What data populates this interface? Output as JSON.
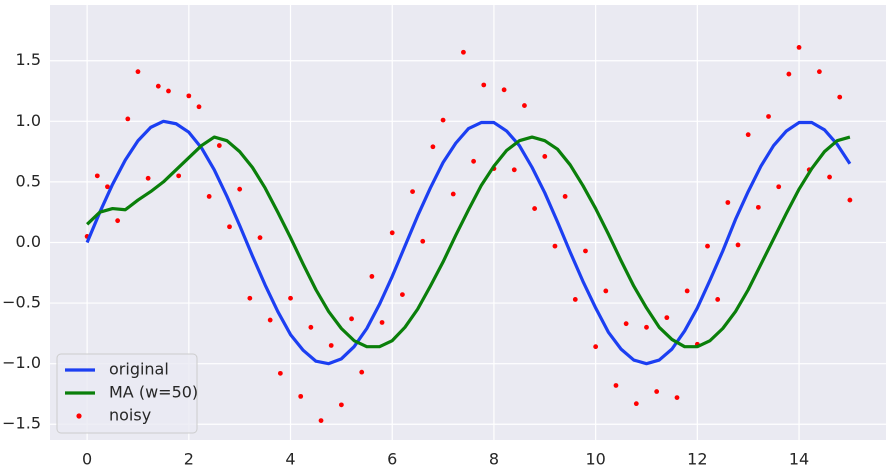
{
  "chart_data": {
    "type": "line",
    "xlim": [
      -0.73,
      15.71
    ],
    "ylim": [
      -1.63,
      1.96
    ],
    "xticks": [
      0,
      2,
      4,
      6,
      8,
      10,
      12,
      14
    ],
    "yticks": [
      {
        "value": -1.5,
        "label": "−1.5"
      },
      {
        "value": -1,
        "label": "−1.0"
      },
      {
        "value": -0.5,
        "label": "−0.5"
      },
      {
        "value": 0,
        "label": "0.0"
      },
      0.5,
      {
        "value": 1,
        "label": "1.0"
      },
      1.5
    ],
    "grid": true,
    "legend": "lower left",
    "series": [
      {
        "name": "original",
        "type": "line",
        "color": "#1c3ff2",
        "x": [
          0,
          0.25,
          0.5,
          0.75,
          1,
          1.25,
          1.5,
          1.75,
          2,
          2.25,
          2.5,
          2.75,
          3,
          3.25,
          3.5,
          3.75,
          4,
          4.25,
          4.5,
          4.75,
          5,
          5.25,
          5.5,
          5.75,
          6,
          6.25,
          6.5,
          6.75,
          7,
          7.25,
          7.5,
          7.75,
          8,
          8.25,
          8.5,
          8.75,
          9,
          9.25,
          9.5,
          9.75,
          10,
          10.25,
          10.5,
          10.75,
          11,
          11.25,
          11.5,
          11.75,
          12,
          12.25,
          12.5,
          12.75,
          13,
          13.25,
          13.5,
          13.75,
          14,
          14.25,
          14.5,
          14.75,
          15
        ],
        "values": [
          0,
          0.25,
          0.48,
          0.68,
          0.84,
          0.95,
          1.0,
          0.98,
          0.91,
          0.78,
          0.6,
          0.38,
          0.14,
          -0.11,
          -0.35,
          -0.57,
          -0.76,
          -0.89,
          -0.98,
          -1.0,
          -0.96,
          -0.86,
          -0.71,
          -0.51,
          -0.28,
          -0.03,
          0.22,
          0.45,
          0.66,
          0.82,
          0.94,
          0.99,
          0.99,
          0.92,
          0.8,
          0.62,
          0.41,
          0.17,
          -0.08,
          -0.32,
          -0.54,
          -0.74,
          -0.88,
          -0.97,
          -1.0,
          -0.97,
          -0.88,
          -0.73,
          -0.54,
          -0.31,
          -0.07,
          0.19,
          0.42,
          0.63,
          0.8,
          0.92,
          0.99,
          0.99,
          0.93,
          0.81,
          0.65
        ]
      },
      {
        "name": "MA (w=50)",
        "type": "line",
        "color": "#0a7f0a",
        "x": [
          0,
          0.25,
          0.5,
          0.75,
          1,
          1.25,
          1.5,
          1.75,
          2,
          2.25,
          2.5,
          2.75,
          3,
          3.25,
          3.5,
          3.75,
          4,
          4.25,
          4.5,
          4.75,
          5,
          5.25,
          5.5,
          5.75,
          6,
          6.25,
          6.5,
          6.75,
          7,
          7.25,
          7.5,
          7.75,
          8,
          8.25,
          8.5,
          8.75,
          9,
          9.25,
          9.5,
          9.75,
          10,
          10.25,
          10.5,
          10.75,
          11,
          11.25,
          11.5,
          11.75,
          12,
          12.25,
          12.5,
          12.75,
          13,
          13.25,
          13.5,
          13.75,
          14,
          14.25,
          14.5,
          14.75,
          15
        ],
        "values": [
          0.15,
          0.25,
          0.28,
          0.27,
          0.35,
          0.42,
          0.5,
          0.6,
          0.7,
          0.8,
          0.87,
          0.84,
          0.75,
          0.62,
          0.45,
          0.25,
          0.04,
          -0.18,
          -0.39,
          -0.57,
          -0.71,
          -0.81,
          -0.86,
          -0.86,
          -0.81,
          -0.7,
          -0.55,
          -0.36,
          -0.16,
          0.06,
          0.27,
          0.47,
          0.63,
          0.76,
          0.84,
          0.87,
          0.84,
          0.77,
          0.64,
          0.47,
          0.28,
          0.07,
          -0.15,
          -0.36,
          -0.54,
          -0.7,
          -0.8,
          -0.86,
          -0.86,
          -0.81,
          -0.71,
          -0.57,
          -0.39,
          -0.18,
          0.03,
          0.24,
          0.44,
          0.61,
          0.75,
          0.84,
          0.87
        ]
      },
      {
        "name": "noisy",
        "type": "scatter",
        "color": "#ff0000",
        "x": [
          0,
          0.2,
          0.4,
          0.6,
          0.8,
          1,
          1.2,
          1.4,
          1.6,
          1.8,
          2,
          2.2,
          2.4,
          2.6,
          2.8,
          3,
          3.2,
          3.4,
          3.6,
          3.8,
          4,
          4.2,
          4.4,
          4.6,
          4.8,
          5,
          5.2,
          5.4,
          5.6,
          5.8,
          6,
          6.2,
          6.4,
          6.6,
          6.8,
          7,
          7.2,
          7.4,
          7.6,
          7.8,
          8,
          8.2,
          8.4,
          8.6,
          8.8,
          9,
          9.2,
          9.4,
          9.6,
          9.8,
          10,
          10.2,
          10.4,
          10.6,
          10.8,
          11,
          11.2,
          11.4,
          11.6,
          11.8,
          12,
          12.2,
          12.4,
          12.6,
          12.8,
          13,
          13.2,
          13.4,
          13.6,
          13.8,
          14,
          14.2,
          14.4,
          14.6,
          14.8,
          15
        ],
        "values": [
          0.05,
          0.55,
          0.46,
          0.18,
          1.02,
          1.41,
          0.53,
          1.29,
          1.25,
          0.55,
          1.21,
          1.12,
          0.38,
          0.8,
          0.13,
          0.44,
          -0.46,
          0.04,
          -0.64,
          -1.08,
          -0.46,
          -1.27,
          -0.7,
          -1.47,
          -0.85,
          -1.34,
          -0.63,
          -1.07,
          -0.28,
          -0.66,
          0.08,
          -0.43,
          0.42,
          0.01,
          0.79,
          1.01,
          0.4,
          1.57,
          0.67,
          1.3,
          0.61,
          1.26,
          0.6,
          1.13,
          0.28,
          0.71,
          -0.03,
          0.38,
          -0.47,
          -0.07,
          -0.86,
          -0.4,
          -1.18,
          -0.67,
          -1.33,
          -0.7,
          -1.23,
          -0.62,
          -1.28,
          -0.4,
          -0.84,
          -0.03,
          -0.47,
          0.33,
          -0.02,
          0.89,
          0.29,
          1.04,
          0.46,
          1.39,
          1.61,
          0.6,
          1.41,
          0.54,
          1.2,
          0.35
        ]
      }
    ]
  }
}
